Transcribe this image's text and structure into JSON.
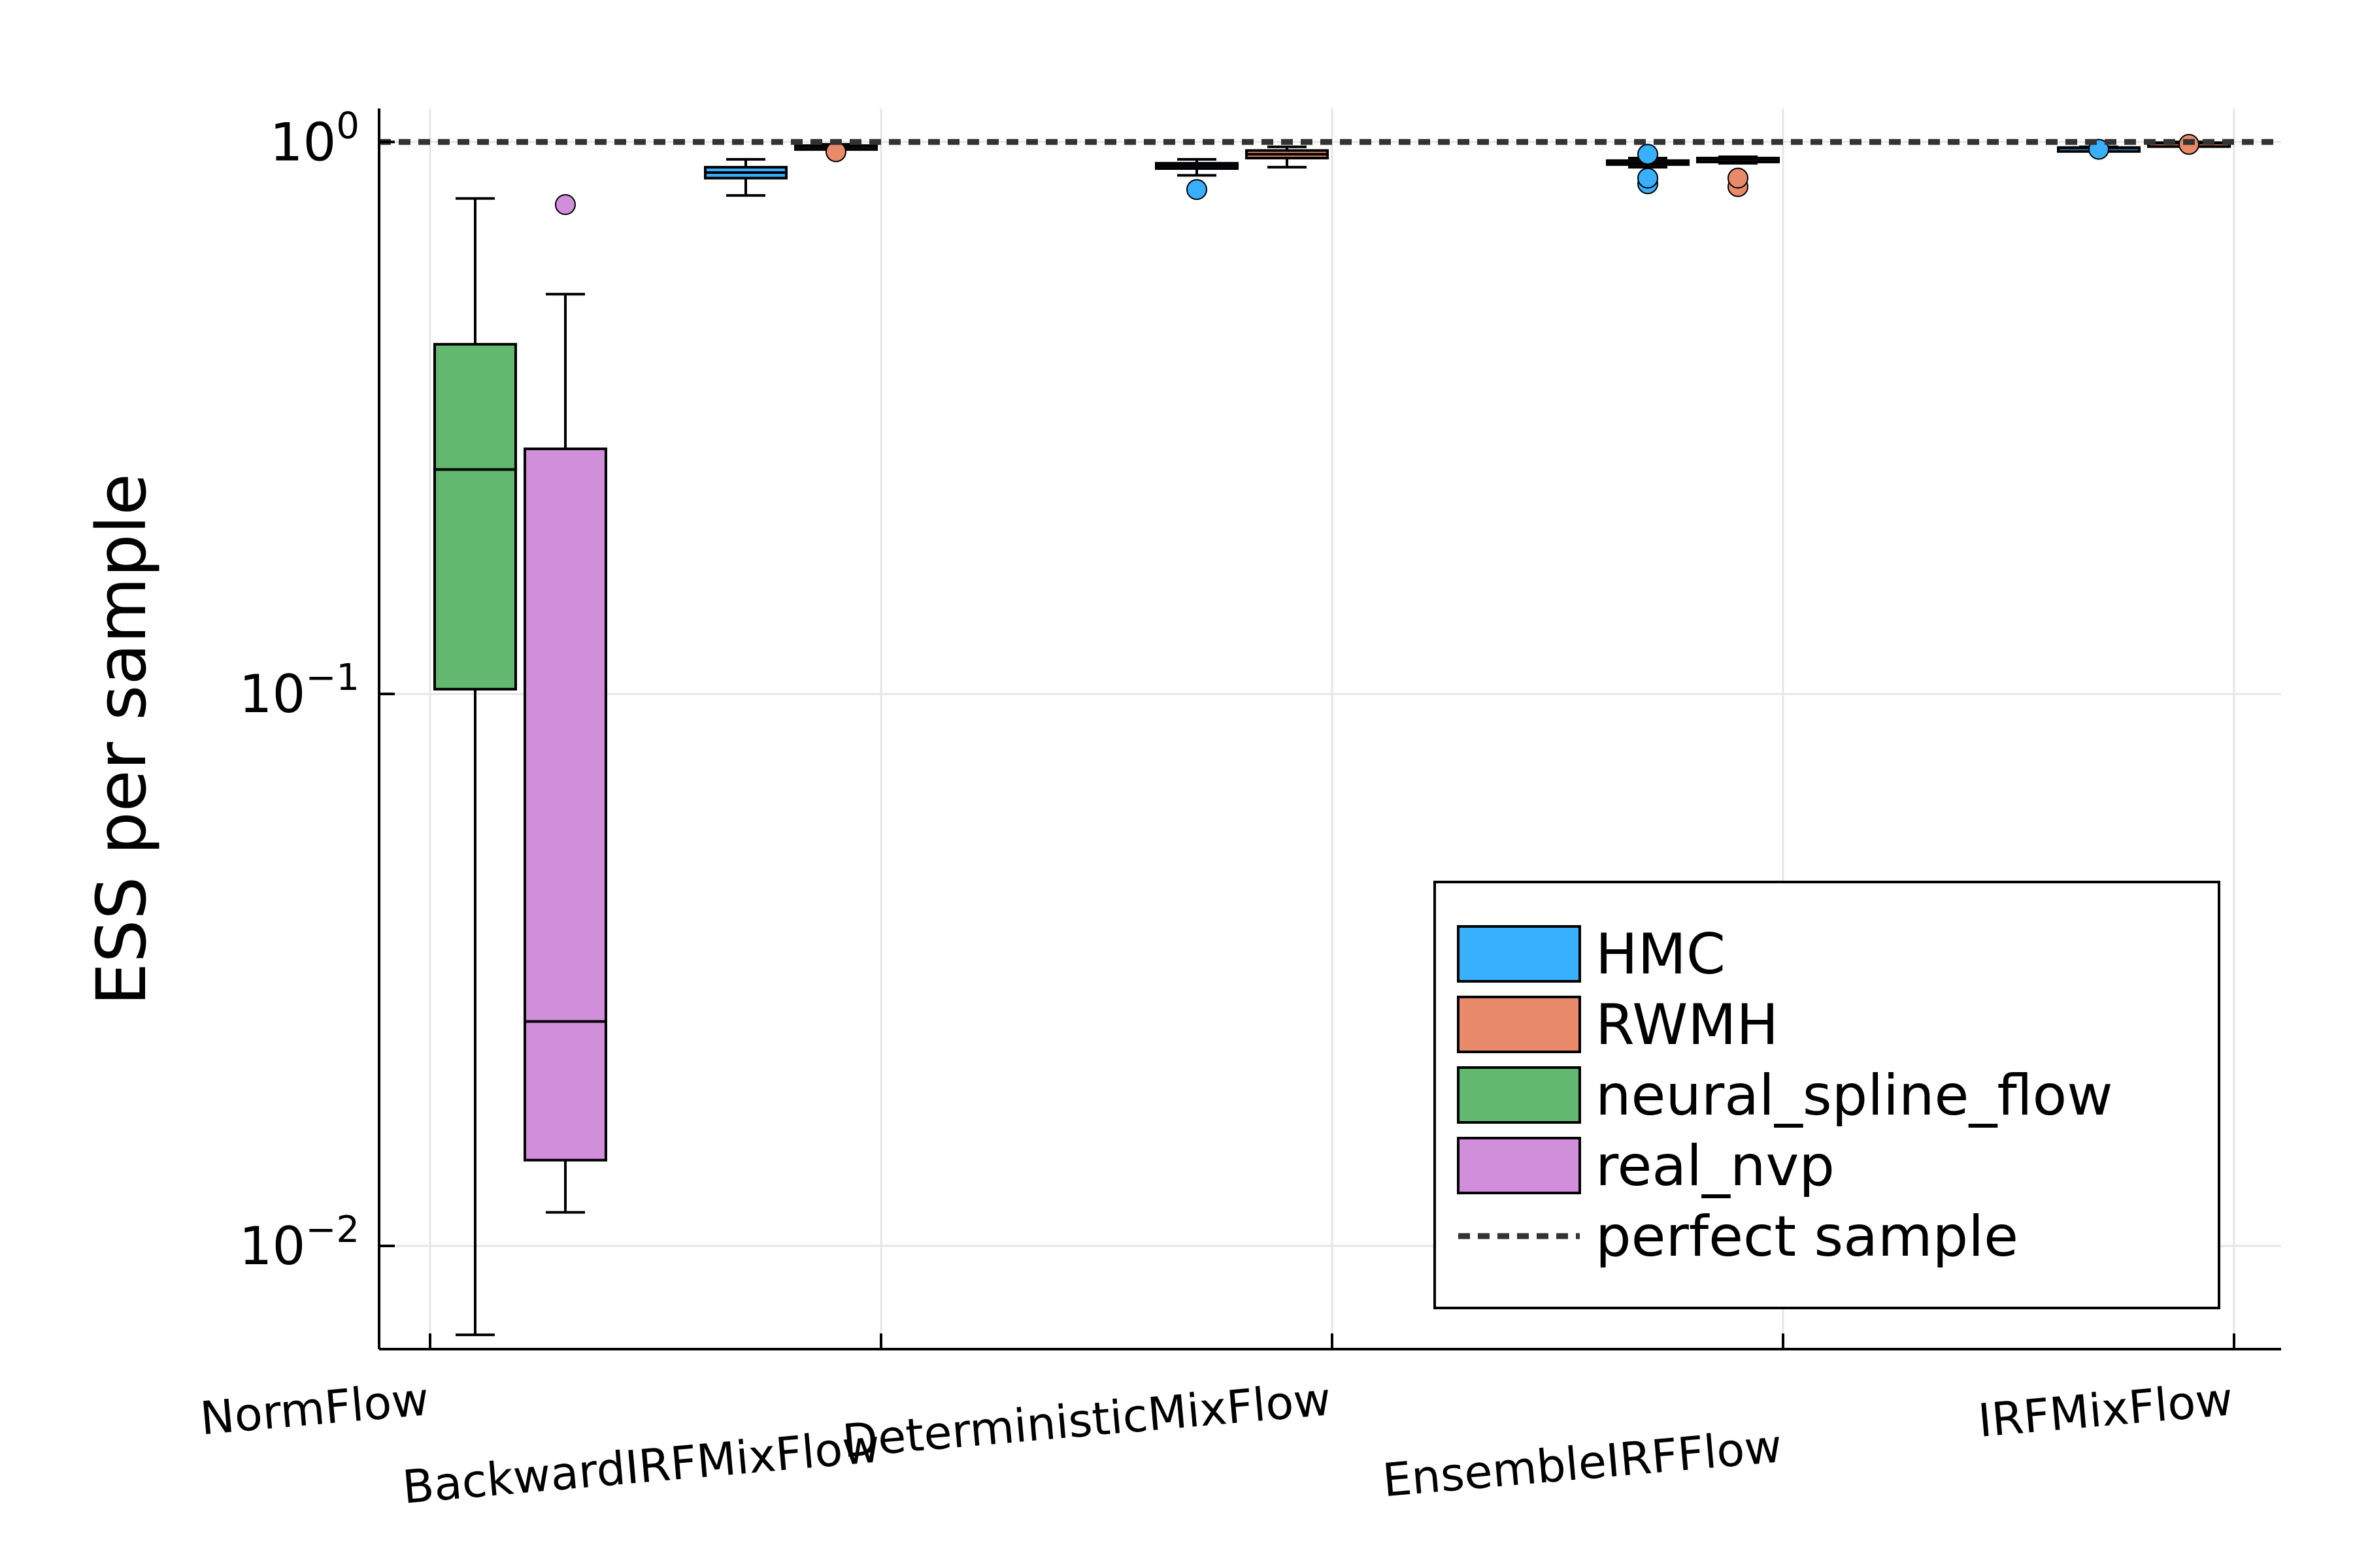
{
  "chart_data": {
    "type": "box",
    "ylabel": "ESS per sample",
    "xlabel": "",
    "yscale": "log10",
    "ylim": [
      0.0065,
      1.15
    ],
    "yticks": [
      {
        "value": 0.01,
        "base": "10",
        "exp": "−2"
      },
      {
        "value": 0.1,
        "base": "10",
        "exp": "−1"
      },
      {
        "value": 1,
        "base": "10",
        "exp": "0"
      }
    ],
    "grid": true,
    "legend_position": "bottom-right",
    "categories": [
      "NormFlow",
      "BackwardIRFMixFlow",
      "DeterministicMixFlow",
      "EnsembleIRFFlow",
      "IRFMixFlow"
    ],
    "series": [
      {
        "name": "HMC",
        "color": "#38b0fd"
      },
      {
        "name": "RWMH",
        "color": "#e98b6a"
      },
      {
        "name": "neural_spline_flow",
        "color": "#63b86f"
      },
      {
        "name": "real_nvp",
        "color": "#d08edb"
      }
    ],
    "boxes": [
      {
        "series": 2,
        "x": 0.1,
        "min": 0.0069,
        "q1": 0.102,
        "median": 0.255,
        "q3": 0.43,
        "max": 0.79,
        "outliers": []
      },
      {
        "series": 3,
        "x": 0.3,
        "min": 0.0115,
        "q1": 0.0143,
        "median": 0.0255,
        "q3": 0.278,
        "max": 0.53,
        "outliers": [
          0.77
        ]
      },
      {
        "series": 0,
        "x": 0.7,
        "min": 0.8,
        "q1": 0.86,
        "median": 0.88,
        "q3": 0.9,
        "max": 0.93,
        "outliers": []
      },
      {
        "series": 1,
        "x": 0.9,
        "min": 0.97,
        "q1": 0.975,
        "median": 0.98,
        "q3": 0.985,
        "max": 0.99,
        "outliers": [
          0.96
        ]
      },
      {
        "series": 0,
        "x": 1.7,
        "min": 0.87,
        "q1": 0.895,
        "median": 0.905,
        "q3": 0.915,
        "max": 0.93,
        "outliers": [
          0.82
        ]
      },
      {
        "series": 1,
        "x": 1.9,
        "min": 0.9,
        "q1": 0.935,
        "median": 0.95,
        "q3": 0.965,
        "max": 0.98,
        "outliers": []
      },
      {
        "series": 0,
        "x": 2.7,
        "min": 0.9,
        "q1": 0.91,
        "median": 0.915,
        "q3": 0.925,
        "max": 0.935,
        "outliers": [
          0.95,
          0.84,
          0.86
        ]
      },
      {
        "series": 1,
        "x": 2.9,
        "min": 0.915,
        "q1": 0.925,
        "median": 0.93,
        "q3": 0.935,
        "max": 0.94,
        "outliers": [
          0.83,
          0.86
        ]
      },
      {
        "series": 0,
        "x": 3.7,
        "min": 0.97,
        "q1": 0.973,
        "median": 0.975,
        "q3": 0.977,
        "max": 0.98,
        "outliers": [
          0.97
        ]
      },
      {
        "series": 1,
        "x": 3.9,
        "min": 0.99,
        "q1": 0.993,
        "median": 0.995,
        "q3": 0.997,
        "max": 1.0,
        "outliers": [
          0.99
        ]
      }
    ],
    "reference_line": {
      "name": "perfect sample",
      "value": 1,
      "style": "dashed",
      "color": "#333333"
    }
  }
}
